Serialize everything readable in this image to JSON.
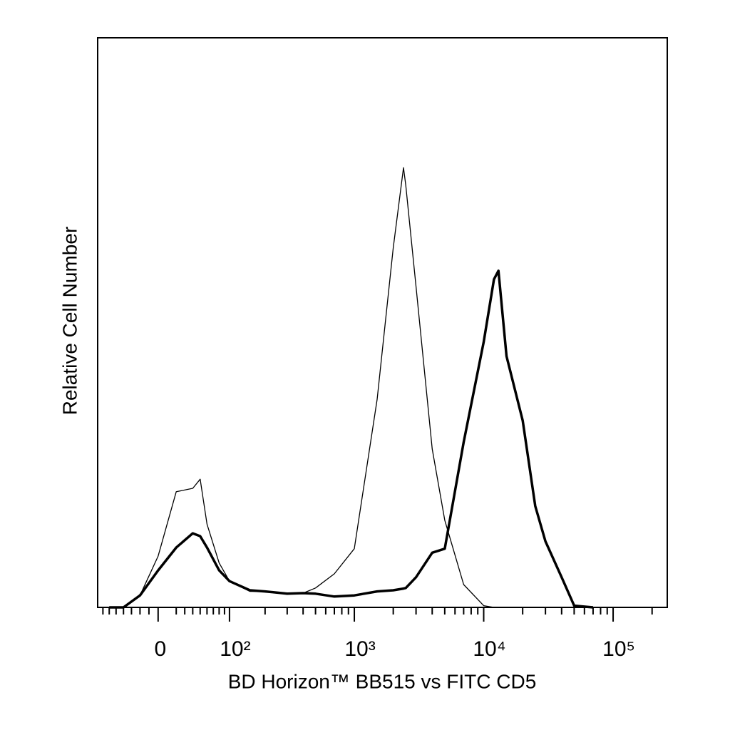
{
  "chart_data": {
    "type": "line",
    "xlabel": "BD Horizon™ BB515 vs FITC CD5",
    "ylabel": "Relative Cell Number",
    "xscale": "biexponential",
    "x": [
      -60,
      -40,
      -20,
      0,
      20,
      40,
      50,
      60,
      80,
      100,
      150,
      200,
      300,
      400,
      500,
      700,
      1000,
      1500,
      2000,
      2400,
      2500,
      3000,
      4000,
      5000,
      7000,
      10000,
      12000,
      13000,
      15000,
      20000,
      25000,
      30000,
      40000,
      50000,
      70000
    ],
    "series": [
      {
        "color": "#000000",
        "values": [
          0,
          0,
          2.1,
          9.0,
          20.3,
          20.9,
          22.5,
          14.6,
          7.8,
          4.6,
          2.8,
          2.8,
          2.4,
          2.5,
          3.4,
          5.9,
          10.3,
          36.5,
          63.1,
          77.2,
          74.1,
          56.3,
          27.8,
          15.3,
          4.0,
          0.3,
          0,
          0,
          0,
          0,
          0,
          0,
          0,
          0,
          0
        ]
      },
      {
        "color": "#000000",
        "values": [
          0,
          0,
          2.1,
          6.5,
          10.5,
          13.0,
          12.5,
          10.5,
          6.5,
          4.6,
          3.0,
          2.8,
          2.4,
          2.5,
          2.4,
          1.9,
          2.1,
          2.8,
          3.0,
          3.3,
          3.4,
          5.3,
          9.6,
          10.3,
          29.0,
          46.6,
          57.6,
          59.1,
          44.1,
          32.8,
          17.8,
          11.6,
          5.3,
          0.3,
          0
        ]
      }
    ],
    "xlim": [
      -79,
      262000
    ],
    "ylim": [
      0,
      100
    ],
    "xticks": [
      0,
      {
        "value": 100,
        "label": "10²"
      },
      {
        "value": 1000,
        "label": "10³"
      },
      {
        "value": 10000,
        "label": "10⁴"
      },
      {
        "value": 100000,
        "label": "10⁵"
      }
    ],
    "xminorticks": [
      -70,
      -60,
      -50,
      -40,
      -30,
      -20,
      -10,
      20,
      30,
      40,
      50,
      60,
      70,
      80,
      90,
      200,
      300,
      400,
      500,
      600,
      700,
      800,
      900,
      2000,
      3000,
      4000,
      5000,
      6000,
      7000,
      8000,
      9000,
      20000,
      30000,
      40000,
      50000,
      60000,
      70000,
      80000,
      90000,
      200000
    ]
  }
}
